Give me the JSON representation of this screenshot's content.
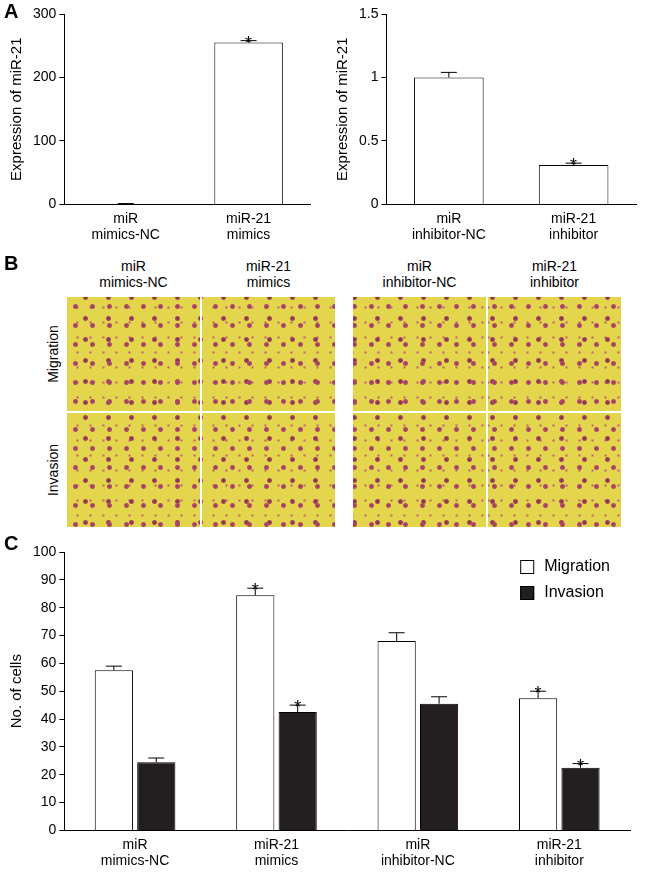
{
  "chart_data": [
    {
      "type": "bar",
      "ylabel": "Expression of miR-21",
      "categories": [
        "miR\nmimics-NC",
        "miR-21\nmimics"
      ],
      "values": [
        1,
        255
      ],
      "errors": [
        0.3,
        3
      ],
      "significance": [
        null,
        "*"
      ],
      "color": "#ffffff",
      "ylim": [
        0,
        300
      ],
      "yticks": [
        0,
        100,
        200,
        300
      ],
      "grid": false
    },
    {
      "type": "bar",
      "ylabel": "Expression of miR-21",
      "categories": [
        "miR\ninhibitor-NC",
        "miR-21\ninhibitor"
      ],
      "values": [
        1.0,
        0.31
      ],
      "errors": [
        0.04,
        0.015
      ],
      "significance": [
        null,
        "*"
      ],
      "color": "#ffffff",
      "ylim": [
        0,
        1.5
      ],
      "yticks": [
        0,
        0.5,
        1,
        1.5
      ],
      "grid": false
    },
    {
      "type": "bar",
      "ylabel": "No. of cells",
      "categories": [
        "miR\nmimics-NC",
        "miR-21\nmimics",
        "miR\ninhibitor-NC",
        "miR-21\ninhibitor"
      ],
      "series": [
        {
          "name": "Migration",
          "color": "#ffffff",
          "values": [
            57.5,
            84.5,
            68,
            47.5
          ],
          "errors": [
            1.5,
            2.5,
            3,
            2.5
          ],
          "significance": [
            null,
            "*",
            null,
            "*"
          ]
        },
        {
          "name": "Invasion",
          "color": "#231f20",
          "values": [
            24.5,
            42.5,
            45.5,
            22.5
          ],
          "errors": [
            1.5,
            2.5,
            2.5,
            1.5
          ],
          "significance": [
            null,
            "*",
            null,
            "*"
          ]
        }
      ],
      "ylim": [
        0,
        100
      ],
      "yticks": [
        0,
        10,
        20,
        30,
        40,
        50,
        60,
        70,
        80,
        90,
        100
      ],
      "legend": "upper right",
      "grid": false
    }
  ],
  "figure": {
    "panel_labels": [
      "A",
      "B",
      "C"
    ],
    "image_grid": {
      "columns": [
        "miR\nmimics-NC",
        "miR-21\nmimics",
        "miR\ninhibitor-NC",
        "miR-21\ninhibitor"
      ],
      "rows": [
        "Migration",
        "Invasion"
      ]
    }
  }
}
